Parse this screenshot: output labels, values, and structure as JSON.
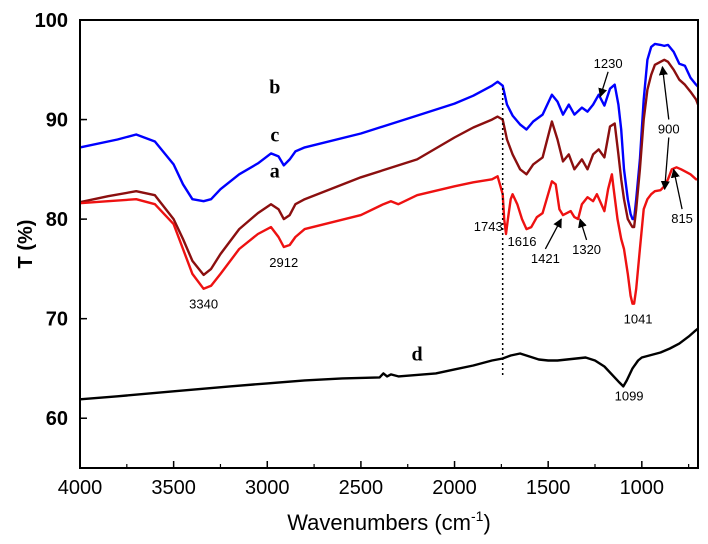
{
  "chart_data": {
    "type": "line",
    "xlabel": "Wavenumbers (cm",
    "xlabel_sup": "-1",
    "xlabel_end": ")",
    "ylabel": "T (%)",
    "xlim": [
      4000,
      700
    ],
    "ylim": [
      55,
      100
    ],
    "x_reversed": true,
    "xticks": [
      4000,
      3500,
      3000,
      2500,
      2000,
      1500,
      1000
    ],
    "yticks": [
      60,
      70,
      80,
      90,
      100
    ],
    "grid": false,
    "series": [
      {
        "name": "b",
        "color": "#0000ff",
        "points": [
          [
            4000,
            87.2
          ],
          [
            3800,
            88.0
          ],
          [
            3700,
            88.5
          ],
          [
            3600,
            87.8
          ],
          [
            3500,
            85.5
          ],
          [
            3450,
            83.5
          ],
          [
            3400,
            82.0
          ],
          [
            3340,
            81.8
          ],
          [
            3300,
            82.0
          ],
          [
            3250,
            83.0
          ],
          [
            3150,
            84.5
          ],
          [
            3050,
            85.6
          ],
          [
            2980,
            86.6
          ],
          [
            2940,
            86.3
          ],
          [
            2912,
            85.4
          ],
          [
            2880,
            86.0
          ],
          [
            2850,
            86.8
          ],
          [
            2800,
            87.2
          ],
          [
            2500,
            88.6
          ],
          [
            2200,
            90.4
          ],
          [
            2000,
            91.6
          ],
          [
            1900,
            92.4
          ],
          [
            1800,
            93.4
          ],
          [
            1770,
            93.8
          ],
          [
            1743,
            93.4
          ],
          [
            1720,
            91.5
          ],
          [
            1690,
            90.4
          ],
          [
            1650,
            89.5
          ],
          [
            1616,
            89.0
          ],
          [
            1580,
            89.8
          ],
          [
            1530,
            90.5
          ],
          [
            1480,
            92.5
          ],
          [
            1450,
            91.8
          ],
          [
            1421,
            90.5
          ],
          [
            1390,
            91.5
          ],
          [
            1360,
            90.5
          ],
          [
            1320,
            91.2
          ],
          [
            1290,
            90.8
          ],
          [
            1260,
            91.5
          ],
          [
            1230,
            92.5
          ],
          [
            1200,
            91.4
          ],
          [
            1170,
            93.1
          ],
          [
            1145,
            93.5
          ],
          [
            1125,
            91.5
          ],
          [
            1110,
            89.0
          ],
          [
            1095,
            85.0
          ],
          [
            1075,
            82.0
          ],
          [
            1060,
            80.5
          ],
          [
            1050,
            80.0
          ],
          [
            1041,
            80.0
          ],
          [
            1030,
            82.0
          ],
          [
            1010,
            86.0
          ],
          [
            990,
            92.0
          ],
          [
            970,
            96.0
          ],
          [
            950,
            97.3
          ],
          [
            930,
            97.6
          ],
          [
            900,
            97.5
          ],
          [
            880,
            97.4
          ],
          [
            860,
            97.5
          ],
          [
            830,
            96.8
          ],
          [
            800,
            95.6
          ],
          [
            770,
            95.4
          ],
          [
            740,
            94.2
          ],
          [
            710,
            93.5
          ],
          [
            700,
            93.3
          ]
        ]
      },
      {
        "name": "c",
        "color": "#8b0f0f",
        "points": [
          [
            4000,
            81.7
          ],
          [
            3850,
            82.3
          ],
          [
            3700,
            82.8
          ],
          [
            3600,
            82.4
          ],
          [
            3500,
            80.0
          ],
          [
            3450,
            78.0
          ],
          [
            3400,
            75.8
          ],
          [
            3340,
            74.4
          ],
          [
            3300,
            75.0
          ],
          [
            3250,
            76.5
          ],
          [
            3150,
            79.0
          ],
          [
            3050,
            80.6
          ],
          [
            2980,
            81.5
          ],
          [
            2940,
            81.0
          ],
          [
            2912,
            80.0
          ],
          [
            2880,
            80.4
          ],
          [
            2850,
            81.5
          ],
          [
            2800,
            82.0
          ],
          [
            2500,
            84.2
          ],
          [
            2200,
            86.0
          ],
          [
            2000,
            88.2
          ],
          [
            1900,
            89.2
          ],
          [
            1800,
            90.0
          ],
          [
            1770,
            90.3
          ],
          [
            1743,
            90.0
          ],
          [
            1720,
            88.0
          ],
          [
            1690,
            86.5
          ],
          [
            1650,
            85.0
          ],
          [
            1616,
            84.5
          ],
          [
            1580,
            85.5
          ],
          [
            1530,
            86.2
          ],
          [
            1480,
            89.8
          ],
          [
            1450,
            88.0
          ],
          [
            1421,
            85.8
          ],
          [
            1390,
            86.5
          ],
          [
            1360,
            85.0
          ],
          [
            1320,
            86.0
          ],
          [
            1290,
            85.0
          ],
          [
            1260,
            86.5
          ],
          [
            1230,
            87.0
          ],
          [
            1200,
            86.2
          ],
          [
            1170,
            89.3
          ],
          [
            1145,
            89.6
          ],
          [
            1125,
            86.5
          ],
          [
            1110,
            84.0
          ],
          [
            1095,
            82.0
          ],
          [
            1075,
            80.0
          ],
          [
            1060,
            79.5
          ],
          [
            1050,
            79.2
          ],
          [
            1041,
            79.2
          ],
          [
            1030,
            81.0
          ],
          [
            1010,
            85.0
          ],
          [
            990,
            90.0
          ],
          [
            970,
            93.0
          ],
          [
            950,
            94.5
          ],
          [
            930,
            95.5
          ],
          [
            900,
            95.8
          ],
          [
            880,
            96.0
          ],
          [
            860,
            95.8
          ],
          [
            830,
            95.0
          ],
          [
            800,
            94.0
          ],
          [
            770,
            93.5
          ],
          [
            740,
            92.8
          ],
          [
            710,
            92.0
          ],
          [
            700,
            91.5
          ]
        ]
      },
      {
        "name": "a",
        "color": "#ee1111",
        "points": [
          [
            4000,
            81.6
          ],
          [
            3850,
            81.8
          ],
          [
            3700,
            82.0
          ],
          [
            3600,
            81.5
          ],
          [
            3500,
            79.5
          ],
          [
            3450,
            77.0
          ],
          [
            3400,
            74.5
          ],
          [
            3340,
            73.0
          ],
          [
            3300,
            73.3
          ],
          [
            3250,
            74.5
          ],
          [
            3150,
            77.0
          ],
          [
            3050,
            78.5
          ],
          [
            2980,
            79.2
          ],
          [
            2940,
            78.2
          ],
          [
            2912,
            77.2
          ],
          [
            2880,
            77.4
          ],
          [
            2850,
            78.2
          ],
          [
            2800,
            79.0
          ],
          [
            2500,
            80.4
          ],
          [
            2380,
            81.5
          ],
          [
            2340,
            81.8
          ],
          [
            2300,
            81.5
          ],
          [
            2200,
            82.4
          ],
          [
            2000,
            83.3
          ],
          [
            1900,
            83.7
          ],
          [
            1800,
            84.0
          ],
          [
            1770,
            84.3
          ],
          [
            1743,
            82.5
          ],
          [
            1735,
            80.0
          ],
          [
            1725,
            78.5
          ],
          [
            1715,
            80.0
          ],
          [
            1700,
            82.0
          ],
          [
            1690,
            82.5
          ],
          [
            1665,
            81.5
          ],
          [
            1640,
            80.0
          ],
          [
            1616,
            79.0
          ],
          [
            1590,
            79.2
          ],
          [
            1560,
            80.2
          ],
          [
            1530,
            80.6
          ],
          [
            1480,
            83.8
          ],
          [
            1460,
            83.5
          ],
          [
            1440,
            81.0
          ],
          [
            1421,
            80.4
          ],
          [
            1400,
            80.6
          ],
          [
            1380,
            80.8
          ],
          [
            1360,
            80.2
          ],
          [
            1340,
            80.0
          ],
          [
            1320,
            81.5
          ],
          [
            1290,
            82.2
          ],
          [
            1260,
            81.8
          ],
          [
            1240,
            82.5
          ],
          [
            1200,
            80.8
          ],
          [
            1180,
            83.0
          ],
          [
            1160,
            84.5
          ],
          [
            1150,
            83.0
          ],
          [
            1130,
            80.0
          ],
          [
            1110,
            78.0
          ],
          [
            1095,
            77.0
          ],
          [
            1075,
            74.5
          ],
          [
            1060,
            72.3
          ],
          [
            1050,
            71.5
          ],
          [
            1041,
            71.5
          ],
          [
            1030,
            73.0
          ],
          [
            1010,
            77.0
          ],
          [
            990,
            81.0
          ],
          [
            970,
            82.0
          ],
          [
            950,
            82.5
          ],
          [
            930,
            82.8
          ],
          [
            900,
            82.9
          ],
          [
            880,
            83.3
          ],
          [
            860,
            84.0
          ],
          [
            840,
            85.0
          ],
          [
            815,
            85.2
          ],
          [
            790,
            85.0
          ],
          [
            770,
            84.8
          ],
          [
            740,
            84.5
          ],
          [
            710,
            84.0
          ],
          [
            700,
            84.0
          ]
        ]
      },
      {
        "name": "d",
        "color": "#000000",
        "points": [
          [
            4000,
            61.9
          ],
          [
            3800,
            62.2
          ],
          [
            3500,
            62.7
          ],
          [
            3200,
            63.2
          ],
          [
            3000,
            63.5
          ],
          [
            2800,
            63.8
          ],
          [
            2600,
            64.0
          ],
          [
            2400,
            64.1
          ],
          [
            2380,
            64.5
          ],
          [
            2360,
            64.2
          ],
          [
            2340,
            64.4
          ],
          [
            2300,
            64.2
          ],
          [
            2100,
            64.5
          ],
          [
            2000,
            64.9
          ],
          [
            1900,
            65.3
          ],
          [
            1800,
            65.8
          ],
          [
            1743,
            66.0
          ],
          [
            1700,
            66.3
          ],
          [
            1650,
            66.5
          ],
          [
            1600,
            66.2
          ],
          [
            1550,
            65.9
          ],
          [
            1500,
            65.8
          ],
          [
            1450,
            65.8
          ],
          [
            1400,
            65.9
          ],
          [
            1350,
            66.0
          ],
          [
            1300,
            66.1
          ],
          [
            1250,
            65.8
          ],
          [
            1200,
            65.2
          ],
          [
            1150,
            64.2
          ],
          [
            1120,
            63.6
          ],
          [
            1099,
            63.2
          ],
          [
            1080,
            63.8
          ],
          [
            1050,
            65.0
          ],
          [
            1020,
            65.8
          ],
          [
            1000,
            66.1
          ],
          [
            960,
            66.3
          ],
          [
            900,
            66.6
          ],
          [
            850,
            67.0
          ],
          [
            800,
            67.5
          ],
          [
            750,
            68.2
          ],
          [
            720,
            68.7
          ],
          [
            700,
            69.0
          ]
        ]
      }
    ],
    "series_labels": [
      {
        "text": "b",
        "series": "b",
        "x": 2960,
        "y": 92.6
      },
      {
        "text": "c",
        "series": "c",
        "x": 2960,
        "y": 87.8
      },
      {
        "text": "a",
        "series": "a",
        "x": 2960,
        "y": 84.2
      },
      {
        "text": "d",
        "series": "d",
        "x": 2200,
        "y": 65.8
      }
    ],
    "annotations": [
      {
        "text": "3340",
        "x": 3340,
        "y": 71.0,
        "arrow": false
      },
      {
        "text": "2912",
        "x": 2912,
        "y": 75.2,
        "arrow": false
      },
      {
        "text": "1743",
        "x": 1820,
        "y": 78.8,
        "arrow": false
      },
      {
        "text": "1616",
        "x": 1640,
        "y": 77.3,
        "arrow": false
      },
      {
        "text": "1421",
        "x": 1515,
        "y": 75.6,
        "arrow": true,
        "arrow_to": [
          1430,
          80.0
        ]
      },
      {
        "text": "1320",
        "x": 1295,
        "y": 76.5,
        "arrow": true,
        "arrow_to": [
          1330,
          80.0
        ]
      },
      {
        "text": "1230",
        "x": 1180,
        "y": 95.2,
        "arrow": true,
        "arrow_to": [
          1222,
          92.3
        ]
      },
      {
        "text": "900",
        "x": 856,
        "y": 88.6,
        "arrow": true,
        "arrow_to": [
          890,
          95.3
        ],
        "arrow2_to": [
          878,
          83.0
        ]
      },
      {
        "text": "815",
        "x": 785,
        "y": 79.6,
        "arrow": true,
        "arrow_to": [
          830,
          85.0
        ]
      },
      {
        "text": "1041",
        "x": 1020,
        "y": 69.5,
        "arrow": false
      },
      {
        "text": "1099",
        "x": 1068,
        "y": 61.8,
        "arrow": false
      }
    ],
    "vline": {
      "x": 1743,
      "style": "dotted"
    }
  }
}
